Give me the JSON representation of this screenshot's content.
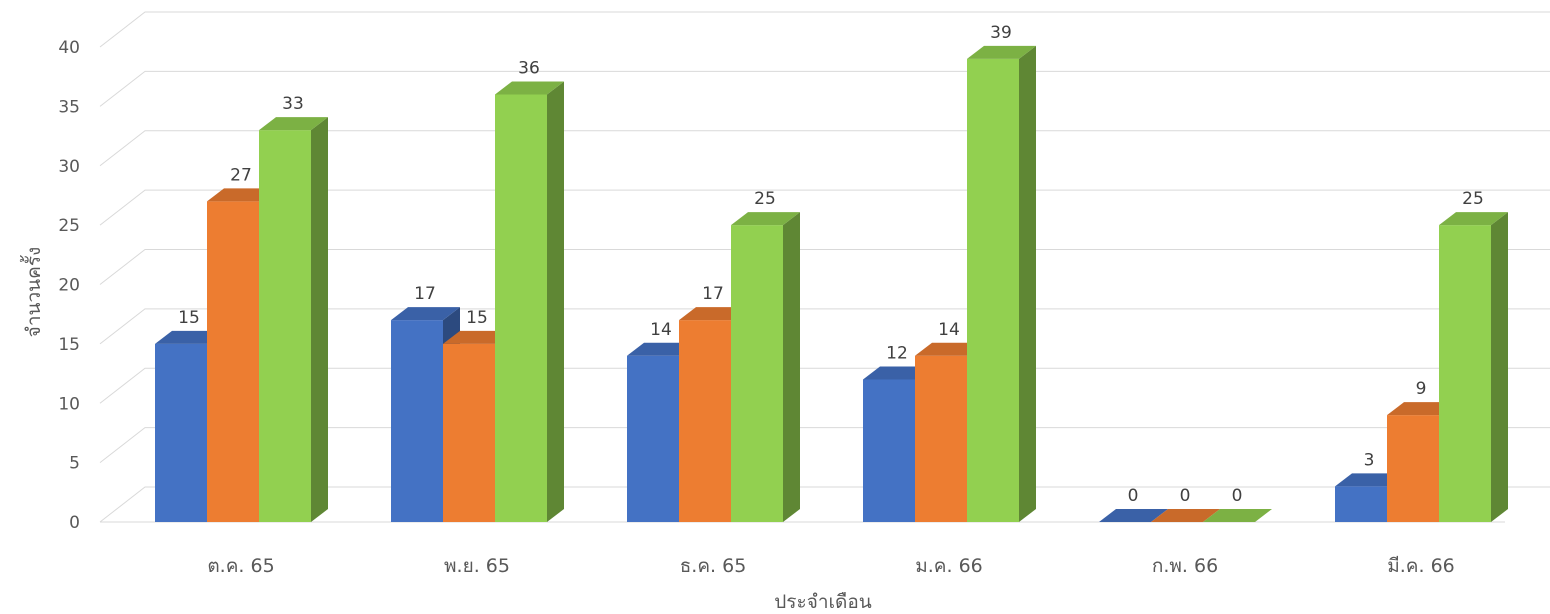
{
  "chart_data": {
    "type": "bar",
    "style": "3d-clustered-column",
    "categories": [
      "ต.ค. 65",
      "พ.ย. 65",
      "ธ.ค. 65",
      "ม.ค. 66",
      "ก.พ. 66",
      "มี.ค. 66"
    ],
    "series": [
      {
        "values": [
          15,
          17,
          14,
          12,
          0,
          3
        ],
        "color": "#4472C4"
      },
      {
        "values": [
          27,
          15,
          17,
          14,
          0,
          9
        ],
        "color": "#ED7D31"
      },
      {
        "values": [
          33,
          36,
          25,
          39,
          0,
          25
        ],
        "color": "#92D050"
      }
    ],
    "title": "",
    "xlabel": "ประจำเดือน",
    "ylabel": "จำนวนครั้ง",
    "ylim": [
      0,
      40
    ],
    "yticks": [
      0,
      5,
      10,
      15,
      20,
      25,
      30,
      35,
      40
    ],
    "grid": true,
    "legend": "none"
  }
}
